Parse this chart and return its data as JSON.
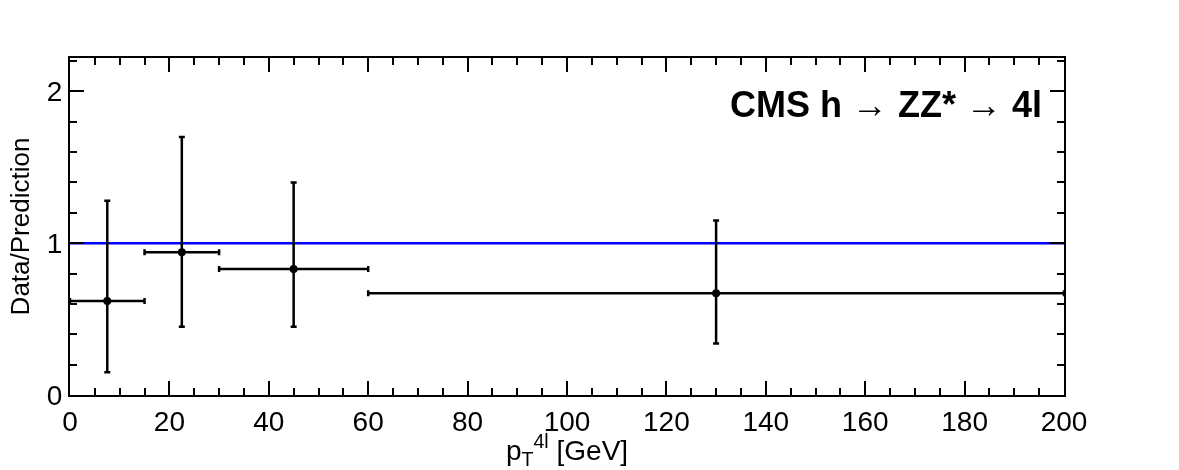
{
  "chart_data": {
    "type": "scatter",
    "annotations": [
      "CMS h → ZZ* → 4l"
    ],
    "xlabel": "p$_{T}$$^{4l}$ [GeV]",
    "ylabel": "Data/Prediction",
    "x": [
      7.5,
      22.5,
      45,
      130
    ],
    "values": [
      0.62,
      0.94,
      0.83,
      0.67
    ],
    "errors": [
      [
        0.15,
        1.28
      ],
      [
        0.45,
        1.7
      ],
      [
        0.45,
        1.4
      ],
      [
        0.34,
        1.15
      ]
    ],
    "xerrors": [
      [
        0,
        15
      ],
      [
        15,
        30
      ],
      [
        30,
        60
      ],
      [
        60,
        200
      ]
    ],
    "color": "#000000",
    "marker": "circle",
    "ref_lines": [
      {
        "axis": "y",
        "value": 1,
        "color": "#0000ff"
      }
    ],
    "xlim": [
      0,
      200
    ],
    "xticks": [
      0,
      20,
      40,
      60,
      80,
      100,
      120,
      140,
      160,
      180,
      200
    ],
    "ylim": [
      0,
      2.22
    ],
    "yticks": [
      0,
      1,
      2
    ],
    "grid": false,
    "legend": false
  }
}
